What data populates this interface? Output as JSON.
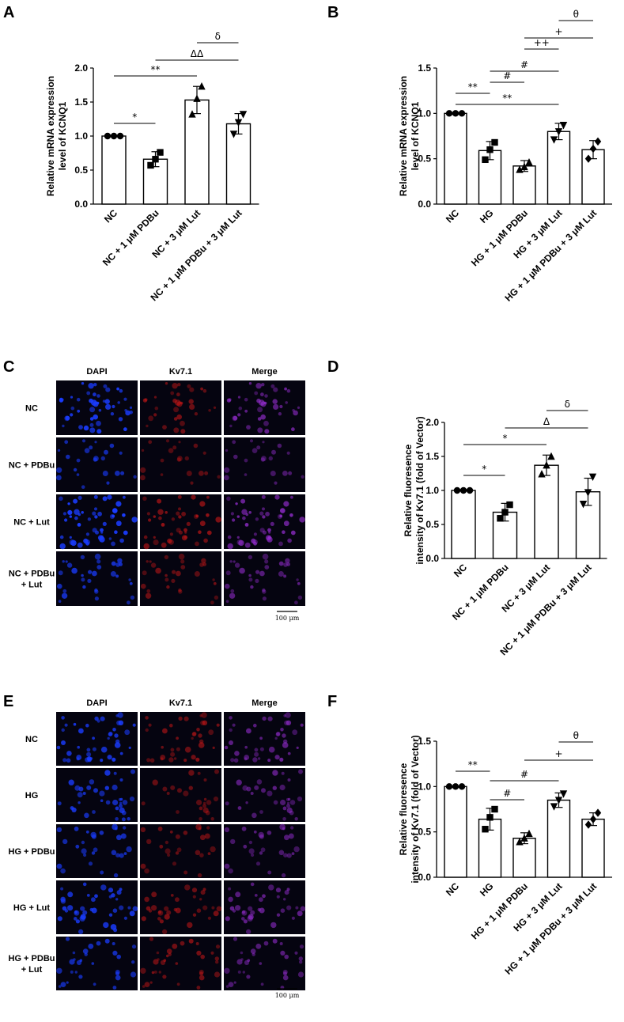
{
  "chart_data": [
    {
      "panel": "A",
      "type": "bar",
      "ylabel": "Relative mRNA expression level of KCNQ1",
      "ylim": [
        0,
        2.0
      ],
      "yticks": [
        "0.0",
        "0.5",
        "1.0",
        "1.5",
        "2.0"
      ],
      "categories": [
        "NC",
        "NC + 1 μM PDBu",
        "NC + 3 μM Lut",
        "NC + 1 μM PDBu + 3 μM Lut"
      ],
      "values": [
        1.0,
        0.66,
        1.53,
        1.18
      ],
      "errors": [
        0.0,
        0.11,
        0.2,
        0.15
      ],
      "points": [
        [
          1.0,
          1.0,
          1.0
        ],
        [
          0.57,
          0.66,
          0.76
        ],
        [
          1.32,
          1.55,
          1.73
        ],
        [
          1.03,
          1.2,
          1.32
        ]
      ],
      "markers": [
        "circle",
        "square",
        "triangle-up",
        "triangle-down"
      ],
      "significance": [
        {
          "from": 0,
          "to": 1,
          "label": "*"
        },
        {
          "from": 0,
          "to": 2,
          "label": "**"
        },
        {
          "from": 1,
          "to": 3,
          "label": "ΔΔ"
        },
        {
          "from": 2,
          "to": 3,
          "label": "δ"
        }
      ]
    },
    {
      "panel": "B",
      "type": "bar",
      "ylabel": "Relative mRNA expression level of KCNQ1",
      "ylim": [
        0,
        1.5
      ],
      "yticks": [
        "0.0",
        "0.5",
        "1.0",
        "1.5"
      ],
      "categories": [
        "NC",
        "HG",
        "HG + 1 μM PDBu",
        "HG + 3 μM Lut",
        "HG + 1 μM PDBu + 3 μM Lut"
      ],
      "values": [
        1.0,
        0.59,
        0.42,
        0.8,
        0.6
      ],
      "errors": [
        0.01,
        0.1,
        0.06,
        0.09,
        0.1
      ],
      "points": [
        [
          1.0,
          1.0,
          1.0
        ],
        [
          0.49,
          0.6,
          0.68
        ],
        [
          0.38,
          0.41,
          0.46
        ],
        [
          0.71,
          0.8,
          0.87
        ],
        [
          0.5,
          0.61,
          0.69
        ]
      ],
      "markers": [
        "circle",
        "square",
        "triangle-up",
        "triangle-down",
        "diamond"
      ],
      "significance": [
        {
          "from": 0,
          "to": 1,
          "label": "**"
        },
        {
          "from": 0,
          "to": 3,
          "label": "**"
        },
        {
          "from": 1,
          "to": 2,
          "label": "#"
        },
        {
          "from": 1,
          "to": 3,
          "label": "#"
        },
        {
          "from": 2,
          "to": 3,
          "label": "++"
        },
        {
          "from": 2,
          "to": 4,
          "label": "+"
        },
        {
          "from": 3,
          "to": 4,
          "label": "θ"
        }
      ]
    },
    {
      "panel": "D",
      "type": "bar",
      "ylabel": "Relative fluoresence intensity of Kv7.1 (fold of Vector)",
      "ylim": [
        0,
        2.0
      ],
      "yticks": [
        "0.0",
        "0.5",
        "1.0",
        "1.5",
        "2.0"
      ],
      "categories": [
        "NC",
        "NC + 1 μM PDBu",
        "NC + 3 μM  Lut",
        "NC + 1 μM PDBu + 3 μM Lut"
      ],
      "values": [
        1.0,
        0.68,
        1.37,
        0.98
      ],
      "errors": [
        0.0,
        0.13,
        0.15,
        0.2
      ],
      "points": [
        [
          1.0,
          1.0,
          1.0
        ],
        [
          0.59,
          0.68,
          0.79
        ],
        [
          1.24,
          1.37,
          1.5
        ],
        [
          0.8,
          0.97,
          1.2
        ]
      ],
      "markers": [
        "circle",
        "square",
        "triangle-up",
        "triangle-down"
      ],
      "significance": [
        {
          "from": 0,
          "to": 1,
          "label": "*"
        },
        {
          "from": 0,
          "to": 2,
          "label": "*"
        },
        {
          "from": 1,
          "to": 3,
          "label": "Δ"
        },
        {
          "from": 2,
          "to": 3,
          "label": "δ"
        }
      ]
    },
    {
      "panel": "F",
      "type": "bar",
      "ylabel": "Relative fluoresence intensity of Kv7.1 (fold of Vector)",
      "ylim": [
        0,
        1.5
      ],
      "yticks": [
        "0.0",
        "0.5",
        "1.0",
        "1.5"
      ],
      "categories": [
        "NC",
        "HG",
        "HG + 1 μM PDBu",
        "HG + 3 μM Lut",
        "HG + 1 μM PDBu + 3 μM Lut"
      ],
      "values": [
        1.0,
        0.64,
        0.43,
        0.85,
        0.64
      ],
      "errors": [
        0.0,
        0.12,
        0.06,
        0.08,
        0.07
      ],
      "points": [
        [
          1.0,
          1.0,
          1.0
        ],
        [
          0.53,
          0.66,
          0.75
        ],
        [
          0.39,
          0.43,
          0.48
        ],
        [
          0.78,
          0.85,
          0.92
        ],
        [
          0.58,
          0.64,
          0.71
        ]
      ],
      "markers": [
        "circle",
        "square",
        "triangle-up",
        "triangle-down",
        "diamond"
      ],
      "significance": [
        {
          "from": 0,
          "to": 1,
          "label": "**"
        },
        {
          "from": 1,
          "to": 2,
          "label": "#"
        },
        {
          "from": 1,
          "to": 3,
          "label": "#"
        },
        {
          "from": 2,
          "to": 4,
          "label": "+"
        },
        {
          "from": 3,
          "to": 4,
          "label": "θ"
        }
      ]
    }
  ],
  "micrographs": [
    {
      "panel": "C",
      "columns": [
        "DAPI",
        "Kv7.1",
        "Merge"
      ],
      "rows": [
        "NC",
        "NC + PDBu",
        "NC + Lut",
        "NC + PDBu\n+ Lut"
      ],
      "brightness": [
        [
          0.9,
          0.5,
          0.7
        ],
        [
          0.3,
          0.2,
          0.25
        ],
        [
          1.0,
          0.75,
          0.9
        ],
        [
          0.5,
          0.4,
          0.5
        ]
      ],
      "scale_bar": "100 μm"
    },
    {
      "panel": "E",
      "columns": [
        "DAPI",
        "Kv7.1",
        "Merge"
      ],
      "rows": [
        "NC",
        "HG",
        "HG + PDBu",
        "HG + Lut",
        "HG + PDBu\n+ Lut"
      ],
      "brightness": [
        [
          0.8,
          0.6,
          0.7
        ],
        [
          0.6,
          0.3,
          0.5
        ],
        [
          0.4,
          0.35,
          0.4
        ],
        [
          0.7,
          0.5,
          0.6
        ],
        [
          0.45,
          0.55,
          0.5
        ]
      ],
      "scale_bar": "100 μm"
    }
  ],
  "colors": {
    "dapi": "#1a3cff",
    "kv71": "#d01818",
    "merge": "#9b2fd8",
    "background": "#050410"
  }
}
